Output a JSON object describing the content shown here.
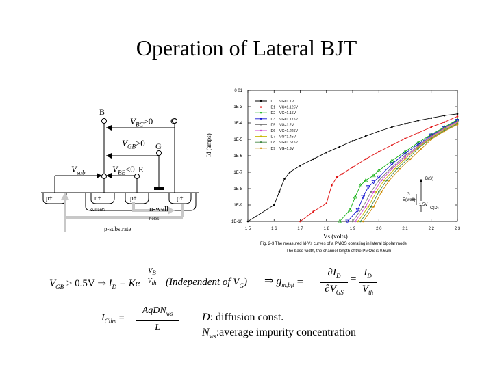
{
  "slide": {
    "title": "Operation of Lateral BJT"
  },
  "device_diagram": {
    "terminals": {
      "base": "B",
      "collector": "C",
      "gate": "G",
      "emitter": "E"
    },
    "bias": {
      "vbc": {
        "sym": "V",
        "sub": "BC",
        "rel": ">0"
      },
      "vgb": {
        "sym": "V",
        "sub": "GB",
        "rel": ">0"
      },
      "vsub": {
        "sym": "V",
        "sub": "sub"
      },
      "vbe": {
        "sym": "V",
        "sub": "BE",
        "rel": "<0"
      }
    },
    "regions": {
      "p_left": "p+",
      "n_plus": "n+",
      "p_mid": "p+",
      "p_right": "p+",
      "nwell": "n-well",
      "psubstrate": "p-substrate",
      "arrow_left": "current?",
      "arrow_right": "holes"
    }
  },
  "chart_data": {
    "type": "line",
    "xlabel": "Vs (volts)",
    "ylabel": "Id (amps)",
    "xlim": [
      1.5,
      2.3
    ],
    "x_ticks": [
      "1 5",
      "1 6",
      "1 7",
      "1 8",
      "1 9",
      "2 0",
      "2 1",
      "2 2",
      "2 3"
    ],
    "y_ticks": [
      "0 01",
      "1E-3",
      "1E-4",
      "1E-5",
      "1E-6",
      "1E-7",
      "1E-8",
      "1E-9",
      "1E-10"
    ],
    "caption": {
      "line1": "Fig. 2-3   The measured Id-Vs curves of a PMOS operating in lateral bipolar mode",
      "line2": "The base width, the channel length of the PMOS is 0.6um"
    },
    "inset": {
      "labels": [
        "B(S)",
        "G",
        "E(well)",
        "1.5V",
        "C(D)"
      ]
    },
    "series": [
      {
        "name": "ID",
        "vg": "VG=1.1V",
        "color": "#000000",
        "marker": "dot",
        "x": [
          1.5,
          1.6,
          1.62,
          1.64,
          1.66,
          1.7,
          1.75,
          1.8,
          1.85,
          1.9,
          1.95,
          2.0,
          2.05,
          2.1,
          2.15,
          2.2,
          2.25,
          2.3
        ],
        "logy": [
          -10,
          -9.0,
          -8.2,
          -7.4,
          -7.0,
          -6.6,
          -6.2,
          -5.8,
          -5.45,
          -5.1,
          -4.8,
          -4.5,
          -4.25,
          -4.05,
          -3.85,
          -3.7,
          -3.55,
          -3.45
        ]
      },
      {
        "name": "ID1",
        "vg": "VG=1.125V",
        "color": "#e01010",
        "marker": "dot",
        "x": [
          1.7,
          1.75,
          1.8,
          1.82,
          1.84,
          1.86,
          1.9,
          1.95,
          2.0,
          2.05,
          2.1,
          2.15,
          2.2,
          2.25,
          2.3
        ],
        "logy": [
          -10,
          -9.4,
          -8.9,
          -7.8,
          -7.3,
          -7.1,
          -6.7,
          -6.2,
          -5.75,
          -5.35,
          -4.95,
          -4.6,
          -4.25,
          -3.95,
          -3.6
        ]
      },
      {
        "name": "ID2",
        "vg": "VG=1.15V",
        "color": "#10b010",
        "marker": "triangle",
        "x": [
          1.85,
          1.89,
          1.91,
          1.93,
          1.95,
          1.98,
          2.0,
          2.05,
          2.1,
          2.15,
          2.2,
          2.25,
          2.3
        ],
        "logy": [
          -10,
          -9.3,
          -8.5,
          -7.8,
          -7.5,
          -7.2,
          -6.9,
          -6.3,
          -5.75,
          -5.2,
          -4.7,
          -4.25,
          -3.8
        ]
      },
      {
        "name": "ID3",
        "vg": "VG=1.175V",
        "color": "#1010d0",
        "marker": "triangle-down",
        "x": [
          1.88,
          1.92,
          1.94,
          1.96,
          1.98,
          2.0,
          2.05,
          2.1,
          2.15,
          2.2,
          2.25,
          2.3
        ],
        "logy": [
          -10,
          -9.3,
          -8.5,
          -7.9,
          -7.6,
          -7.3,
          -6.5,
          -5.85,
          -5.3,
          -4.75,
          -4.3,
          -3.85
        ]
      },
      {
        "name": "ID5",
        "vg": "VG=1.2V",
        "color": "#777777",
        "marker": "dot",
        "x": [
          1.9,
          1.94,
          1.97,
          2.0,
          2.05,
          2.1,
          2.15,
          2.2,
          2.25,
          2.3
        ],
        "logy": [
          -10,
          -9.1,
          -8.2,
          -7.5,
          -6.7,
          -6.0,
          -5.4,
          -4.8,
          -4.3,
          -3.9
        ]
      },
      {
        "name": "ID6",
        "vg": "VG=1.225V",
        "color": "#cc44cc",
        "marker": "dot",
        "x": [
          1.91,
          1.95,
          1.98,
          2.01,
          2.05,
          2.1,
          2.15,
          2.2,
          2.25,
          2.3
        ],
        "logy": [
          -10,
          -9.1,
          -8.2,
          -7.5,
          -6.8,
          -6.1,
          -5.45,
          -4.85,
          -4.35,
          -3.95
        ]
      },
      {
        "name": "ID7",
        "vg": "VG=1.45V",
        "color": "#c8b400",
        "marker": "dot",
        "x": [
          1.92,
          1.96,
          1.99,
          2.02,
          2.06,
          2.1,
          2.15,
          2.2,
          2.25,
          2.3
        ],
        "logy": [
          -10,
          -9.1,
          -8.2,
          -7.5,
          -6.8,
          -6.2,
          -5.5,
          -4.9,
          -4.4,
          -4.0
        ]
      },
      {
        "name": "ID8",
        "vg": "VG=1.675V",
        "color": "#448844",
        "marker": "dot",
        "x": [
          1.93,
          1.97,
          2.0,
          2.03,
          2.07,
          2.11,
          2.15,
          2.2,
          2.25,
          2.3
        ],
        "logy": [
          -10,
          -9.1,
          -8.2,
          -7.5,
          -6.8,
          -6.2,
          -5.55,
          -4.95,
          -4.45,
          -4.05
        ]
      },
      {
        "name": "ID9",
        "vg": "VG=1.9V",
        "color": "#cc8800",
        "marker": "dot",
        "x": [
          1.94,
          1.98,
          2.01,
          2.04,
          2.08,
          2.12,
          2.16,
          2.2,
          2.25,
          2.3
        ],
        "logy": [
          -10,
          -9.1,
          -8.2,
          -7.5,
          -6.8,
          -6.2,
          -5.6,
          -5.0,
          -4.5,
          -4.1
        ]
      }
    ]
  },
  "equations": {
    "eq1": {
      "lhs": "V",
      "lhs_sub": "GB",
      "cond": " > 0.5V ⇒ ",
      "id": "I",
      "id_sub": "D",
      "eq": " = Ke",
      "exp_num": "V",
      "exp_num_sub": "B",
      "exp_den": "V",
      "exp_den_sub": "th",
      "note": "(Independent of V",
      "note_sub": "G",
      "note_end": ")"
    },
    "eq2": {
      "arrow": "⇒",
      "g": "g",
      "g_sub": "m,bjt",
      "def": "≡",
      "d_num": "∂I",
      "d_num_sub": "D",
      "d_den": "∂V",
      "d_den_sub": "GS",
      "eq": "=",
      "r_num": "I",
      "r_num_sub": "D",
      "r_den": "V",
      "r_den_sub": "th"
    },
    "eq3": {
      "lhs": "I",
      "lhs_sub": "Clim",
      "eq": "=",
      "num": "AqDN",
      "num_sub": "ws",
      "den": "L"
    },
    "defs": {
      "d_sym": "D",
      "d_text": ": diffusion const.",
      "n_sym": "N",
      "n_sub": "ws",
      "n_text": ":average impurity concentration"
    }
  }
}
